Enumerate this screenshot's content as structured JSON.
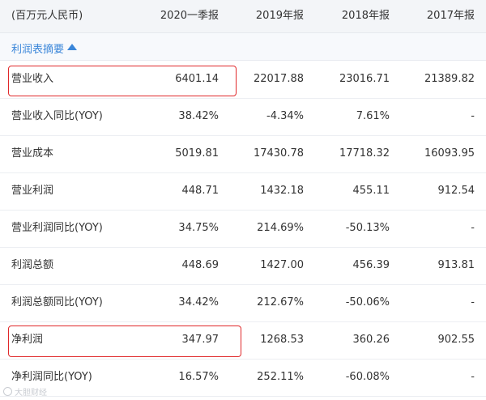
{
  "header": {
    "unit_label": "(百万元人民币)",
    "columns": [
      "2020一季报",
      "2019年报",
      "2018年报",
      "2017年报"
    ]
  },
  "section": {
    "title": "利润表摘要"
  },
  "rows": [
    {
      "label": "营业收入",
      "values": [
        "6401.14",
        "22017.88",
        "23016.71",
        "21389.82"
      ],
      "highlighted": true
    },
    {
      "label": "营业收入同比(YOY)",
      "values": [
        "38.42%",
        "-4.34%",
        "7.61%",
        "-"
      ]
    },
    {
      "label": "营业成本",
      "values": [
        "5019.81",
        "17430.78",
        "17718.32",
        "16093.95"
      ]
    },
    {
      "label": "营业利润",
      "values": [
        "448.71",
        "1432.18",
        "455.11",
        "912.54"
      ]
    },
    {
      "label": "营业利润同比(YOY)",
      "values": [
        "34.75%",
        "214.69%",
        "-50.13%",
        "-"
      ]
    },
    {
      "label": "利润总额",
      "values": [
        "448.69",
        "1427.00",
        "456.39",
        "913.81"
      ]
    },
    {
      "label": "利润总额同比(YOY)",
      "values": [
        "34.42%",
        "212.67%",
        "-50.06%",
        "-"
      ]
    },
    {
      "label": "净利润",
      "values": [
        "347.97",
        "1268.53",
        "360.26",
        "902.55"
      ],
      "highlighted": true
    },
    {
      "label": "净利润同比(YOY)",
      "values": [
        "16.57%",
        "252.11%",
        "-60.08%",
        "-"
      ]
    }
  ],
  "watermark": "大胆财经",
  "colors": {
    "accent": "#3a86d9",
    "highlight_border": "#e0282a",
    "header_bg": "#f3f5f8"
  }
}
